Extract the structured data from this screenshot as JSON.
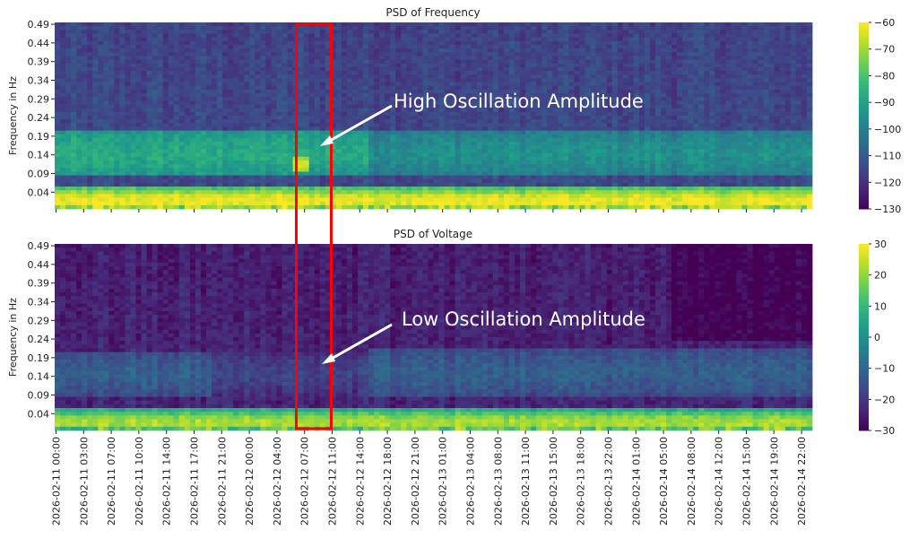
{
  "chart_data": [
    {
      "type": "heatmap",
      "title": "PSD of Frequency",
      "ylabel": "Frequency in Hz",
      "xlabel": "",
      "yticks": [
        "0.49",
        "0.44",
        "0.39",
        "0.34",
        "0.29",
        "0.24",
        "0.19",
        "0.14",
        "0.09",
        "0.04"
      ],
      "ylim": [
        0,
        0.5
      ],
      "colorbar": {
        "min": -130,
        "max": -60,
        "ticks": [
          "-60",
          "-70",
          "-80",
          "-90",
          "-100",
          "-110",
          "-120",
          "-130"
        ],
        "colormap": "viridis"
      },
      "model": {
        "background_db": -116,
        "lowfreq_db": -62,
        "bands": [
          {
            "f_low": 0.09,
            "f_high": 0.21,
            "t_start_h": 0,
            "t_end_h": 40,
            "db": -88
          },
          {
            "f_low": 0.09,
            "f_high": 0.21,
            "t_start_h": 40,
            "t_end_h": 96,
            "db": -95
          },
          {
            "f_low": 0.1,
            "f_high": 0.14,
            "t_start_h": 30.5,
            "t_end_h": 32.5,
            "db": -66
          }
        ]
      },
      "annotation": {
        "text": "High Oscillation Amplitude"
      }
    },
    {
      "type": "heatmap",
      "title": "PSD of Voltage",
      "ylabel": "Frequency in Hz",
      "xlabel": "",
      "yticks": [
        "0.49",
        "0.44",
        "0.39",
        "0.34",
        "0.29",
        "0.24",
        "0.19",
        "0.14",
        "0.09",
        "0.04"
      ],
      "ylim": [
        0,
        0.5
      ],
      "colorbar": {
        "min": -30,
        "max": 30,
        "ticks": [
          "30",
          "20",
          "10",
          "0",
          "-10",
          "-20",
          "-30"
        ],
        "colormap": "viridis"
      },
      "model": {
        "background_db": -25,
        "lowfreq_db": 22,
        "bands": [
          {
            "f_low": 0.09,
            "f_high": 0.21,
            "t_start_h": 0,
            "t_end_h": 20,
            "db": -12
          },
          {
            "f_low": 0.09,
            "f_high": 0.21,
            "t_start_h": 20,
            "t_end_h": 40,
            "db": -18
          },
          {
            "f_low": 0.09,
            "f_high": 0.22,
            "t_start_h": 40,
            "t_end_h": 96,
            "db": -12
          }
        ],
        "quiet_region": {
          "t_start_h": 78,
          "t_end_h": 96,
          "f_low": 0.24,
          "db": -30
        }
      },
      "annotation": {
        "text": "Low Oscillation Amplitude"
      }
    }
  ],
  "xticks": [
    "2026-02-11 00:00",
    "2026-02-11 03:00",
    "2026-02-11 07:00",
    "2026-02-11 10:00",
    "2026-02-11 14:00",
    "2026-02-11 17:00",
    "2026-02-11 21:00",
    "2026-02-12 00:00",
    "2026-02-12 04:00",
    "2026-02-12 07:00",
    "2026-02-12 11:00",
    "2026-02-12 14:00",
    "2026-02-12 18:00",
    "2026-02-12 21:00",
    "2026-02-13 01:00",
    "2026-02-13 04:00",
    "2026-02-13 08:00",
    "2026-02-13 11:00",
    "2026-02-13 15:00",
    "2026-02-13 18:00",
    "2026-02-13 22:00",
    "2026-02-14 01:00",
    "2026-02-14 05:00",
    "2026-02-14 08:00",
    "2026-02-14 12:00",
    "2026-02-14 15:00",
    "2026-02-14 19:00",
    "2026-02-14 22:00"
  ],
  "highlight": {
    "color": "#ff0000",
    "t_start_h": 30,
    "t_end_h": 34
  },
  "annotation_color": "#ffffff"
}
